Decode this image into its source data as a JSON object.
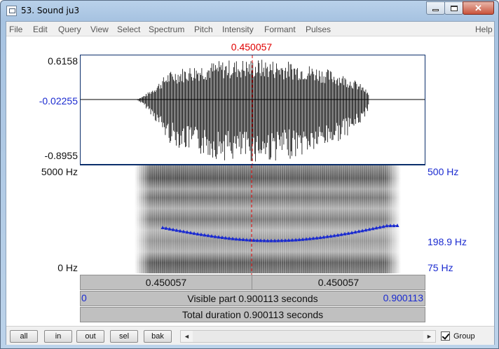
{
  "window": {
    "title": "53. Sound ju3",
    "minimize_glyph": "minimize-icon",
    "maximize_glyph": "maximize-icon",
    "close_glyph": "close-icon",
    "close_symbol": "✕"
  },
  "menu": [
    "File",
    "Edit",
    "Query",
    "View",
    "Select",
    "Spectrum",
    "Pitch",
    "Intensity",
    "Formant",
    "Pulses"
  ],
  "help_label": "Help",
  "editor": {
    "cursor_time": "0.450057",
    "wave_max": "0.6158",
    "wave_mid": "-0.02255",
    "wave_min": "-0.8955",
    "spec_top": "5000 Hz",
    "spec_bottom": "0 Hz",
    "pitch_top": "500 Hz",
    "pitch_cursor": "198.9 Hz",
    "pitch_bottom": "75 Hz",
    "bar1_left": "0.450057",
    "bar1_right": "0.450057",
    "bar2_start": "0",
    "bar2_text": "Visible part 0.900113 seconds",
    "bar2_end": "0.900113",
    "bar3_text": "Total duration 0.900113 seconds",
    "colors": {
      "cursor": "#e00000",
      "pitch": "#1a2ad0",
      "frame": "#0b2e6b"
    }
  },
  "toolbar": {
    "buttons": [
      "all",
      "in",
      "out",
      "sel",
      "bak"
    ],
    "scroll_left": "◄",
    "scroll_right": "►",
    "group_label": "Group",
    "group_checked": true
  }
}
